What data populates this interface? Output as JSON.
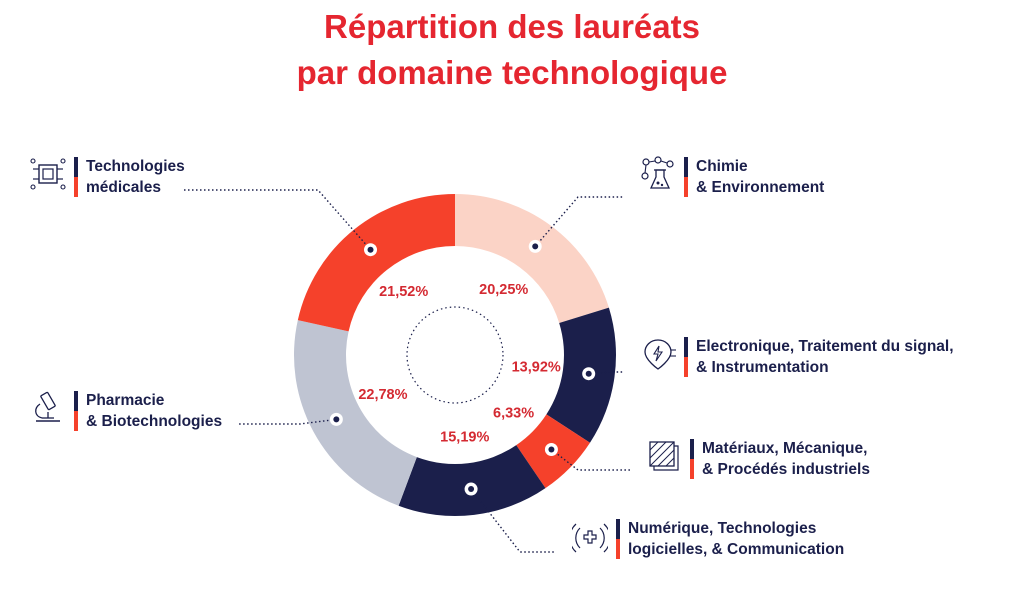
{
  "title": {
    "line1": "Répartition des lauréats",
    "line2": "par domaine technologique"
  },
  "colors": {
    "title": "#e52630",
    "navy": "#1b1f4b",
    "red": "#f5412b",
    "peach": "#fbd3c6",
    "grey": "#bfc4d2",
    "label": "#d42a32"
  },
  "chart_data": {
    "type": "pie",
    "donut": true,
    "slices": [
      {
        "label": "Chimie & Environnement",
        "value": 20.25,
        "display": "20,25%",
        "color": "#fbd3c6",
        "icon": "molecule-flask-icon"
      },
      {
        "label": "Electronique, Traitement du signal, & Instrumentation",
        "value": 13.92,
        "display": "13,92%",
        "color": "#1b1f4b",
        "icon": "circuit-chip-icon"
      },
      {
        "label": "Matériaux, Mécanique, & Procédés industriels",
        "value": 6.33,
        "display": "6,33%",
        "color": "#f5412b",
        "icon": "material-layers-icon"
      },
      {
        "label": "Numérique, Technologies logicielles, & Communication",
        "value": 15.19,
        "display": "15,19%",
        "color": "#1b1f4b",
        "icon": "medical-cross-signal-icon"
      },
      {
        "label": "Pharmacie & Biotechnologies",
        "value": 22.78,
        "display": "22,78%",
        "color": "#bfc4d2",
        "icon": "microscope-icon"
      },
      {
        "label": "Technologies médicales",
        "value": 21.52,
        "display": "21,52%",
        "color": "#f5412b",
        "icon": "processor-chip-icon"
      }
    ]
  },
  "legend": {
    "chimie": {
      "line1": "Chimie",
      "line2": "& Environnement"
    },
    "electronique": {
      "line1": "Electronique, Traitement du signal,",
      "line2": "& Instrumentation"
    },
    "materiaux": {
      "line1": "Matériaux, Mécanique,",
      "line2": "& Procédés industriels"
    },
    "numerique": {
      "line1": "Numérique, Technologies",
      "line2": "logicielles, & Communication"
    },
    "pharmacie": {
      "line1": "Pharmacie",
      "line2": "& Biotechnologies"
    },
    "medical": {
      "line1": "Technologies",
      "line2": "médicales"
    }
  }
}
